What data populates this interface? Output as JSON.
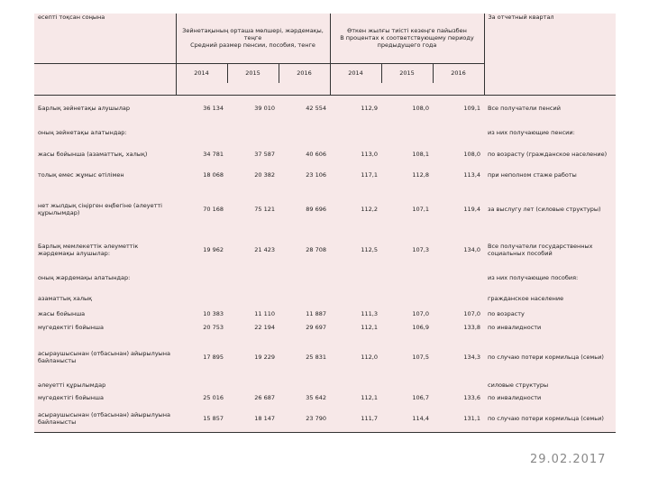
{
  "table": {
    "header": {
      "top_left": "есепті тоқсан соңына",
      "group1": "Зейнетақының орташа мөлшері, жәрдемақы, теңге\nСредний размер пенсии, пособия, тенге",
      "group2": "Өткен жылғы тиісті кезеңге пайызбен\nВ процентах к соответствующему периоду предыдущего года",
      "top_right": "За отчетный квартал"
    },
    "years": [
      "2014",
      "2015",
      "2016",
      "2014",
      "2015",
      "2016"
    ],
    "rows": [
      {
        "kz": "Барлық зейнетақы алушылар",
        "values": [
          "36 134",
          "39 010",
          "42 554",
          "112,9",
          "108,0",
          "109,1"
        ],
        "ru": "Все получатели пенсий"
      },
      {
        "kz": "оның зейнетақы алатындар:",
        "values": [],
        "ru": "из них получающие пенсии:"
      },
      {
        "kz": "жасы бойынша (азаматтық, халық)",
        "values": [
          "34 781",
          "37 587",
          "40 606",
          "113,0",
          "108,1",
          "108,0"
        ],
        "ru": "по возрасту (гражданское население)"
      },
      {
        "kz": "толық емес жұмыс өтілімен",
        "values": [
          "18 068",
          "20 382",
          "23 106",
          "117,1",
          "112,8",
          "113,4"
        ],
        "ru": "при неполном стаже работы"
      },
      {
        "kz": "нет жылдық сіңірген еңбегіне (әлеуетті құрылымдар)",
        "values": [
          "70 168",
          "75 121",
          "89 696",
          "112,2",
          "107,1",
          "119,4"
        ],
        "ru": "за выслугу лет (силовые структуры)"
      },
      {
        "kz": "Барлық мемлекеттік әлеуметтік жәрдемақы алушылар:",
        "values": [
          "19 962",
          "21 423",
          "28 708",
          "112,5",
          "107,3",
          "134,0"
        ],
        "ru": "Все получатели государственных социальных пособий"
      },
      {
        "kz": "оның жәрдемақы алатындар:",
        "values": [],
        "ru": "из них получающие пособия:"
      },
      {
        "kz": "азаматтық халық",
        "values": [],
        "ru": "гражданское население"
      },
      {
        "kz": "жасы бойынша",
        "values": [
          "10 383",
          "11 110",
          "11 887",
          "111,3",
          "107,0",
          "107,0"
        ],
        "ru": "по возрасту"
      },
      {
        "kz": "мүгедектігі бойынша",
        "values": [
          "20 753",
          "22 194",
          "29 697",
          "112,1",
          "106,9",
          "133,8"
        ],
        "ru": "по инвалидности"
      },
      {
        "kz": "асыраушысынан (отбасынан) айырылуына байланысты",
        "values": [
          "17 895",
          "19 229",
          "25 831",
          "112,0",
          "107,5",
          "134,3"
        ],
        "ru": "по случаю потери кормильца (семьи)"
      },
      {
        "kz": "әлеуетті құрылымдар",
        "values": [],
        "ru": "силовые структуры"
      },
      {
        "kz": "мүгедектігі бойынша",
        "values": [
          "25 016",
          "26 687",
          "35 642",
          "112,1",
          "106,7",
          "133,6"
        ],
        "ru": "по инвалидности"
      },
      {
        "kz": "асыраушысынан (отбасынан) айырылуына байланысты",
        "values": [
          "15 857",
          "18 147",
          "23 790",
          "111,7",
          "114,4",
          "131,1"
        ],
        "ru": "по случаю потери кормильца (семьи)"
      }
    ]
  },
  "footer": {
    "date": "29.02.2017"
  }
}
